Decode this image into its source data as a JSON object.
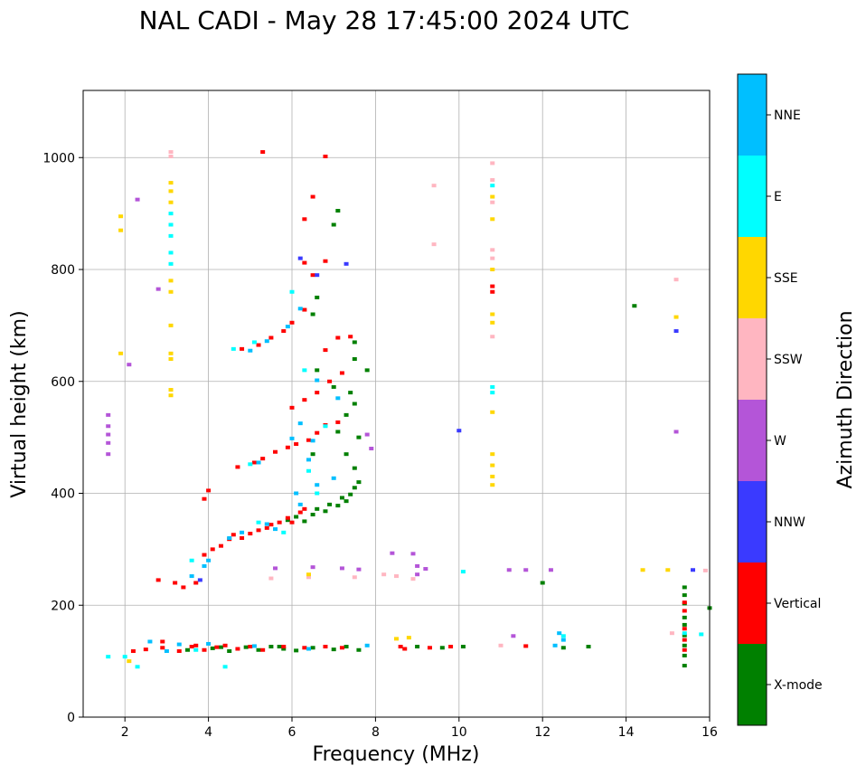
{
  "chart_data": {
    "type": "scatter",
    "title": "NAL CADI - May 28 17:45:00 2024 UTC",
    "xlabel": "Frequency (MHz)",
    "ylabel": "Virtual height (km)",
    "xlim": [
      1,
      16
    ],
    "ylim": [
      0,
      1120
    ],
    "xticks": [
      2,
      4,
      6,
      8,
      10,
      12,
      14,
      16
    ],
    "yticks": [
      0,
      200,
      400,
      600,
      800,
      1000
    ],
    "grid": true,
    "colorbar": {
      "label": "Azimuth Direction",
      "categories": [
        "X-mode",
        "Vertical",
        "NNW",
        "W",
        "SSW",
        "SSE",
        "E",
        "NNE"
      ],
      "colors": [
        "#008000",
        "#ff0000",
        "#3a3aff",
        "#b455d8",
        "#ffb6c1",
        "#ffd700",
        "#00ffff",
        "#00bfff"
      ]
    },
    "series": [
      {
        "name": "X-mode",
        "points": [
          [
            4.1,
            123
          ],
          [
            4.5,
            118
          ],
          [
            4.9,
            125
          ],
          [
            5.2,
            120
          ],
          [
            5.5,
            126
          ],
          [
            5.8,
            122
          ],
          [
            6.1,
            119
          ],
          [
            6.5,
            124
          ],
          [
            7.0,
            121
          ],
          [
            7.3,
            126
          ],
          [
            7.6,
            120
          ],
          [
            9.0,
            126
          ],
          [
            9.6,
            124
          ],
          [
            10.1,
            126
          ],
          [
            12.5,
            124
          ],
          [
            13.1,
            126
          ],
          [
            5.9,
            352
          ],
          [
            6.1,
            358
          ],
          [
            6.3,
            350
          ],
          [
            6.5,
            362
          ],
          [
            6.6,
            372
          ],
          [
            6.8,
            368
          ],
          [
            6.9,
            380
          ],
          [
            7.1,
            378
          ],
          [
            7.2,
            392
          ],
          [
            7.3,
            386
          ],
          [
            7.4,
            398
          ],
          [
            7.5,
            410
          ],
          [
            7.6,
            420
          ],
          [
            7.5,
            445
          ],
          [
            7.3,
            470
          ],
          [
            7.6,
            500
          ],
          [
            7.1,
            510
          ],
          [
            6.5,
            470
          ],
          [
            7.5,
            560
          ],
          [
            7.5,
            640
          ],
          [
            7.5,
            670
          ],
          [
            6.6,
            620
          ],
          [
            7.0,
            590
          ],
          [
            7.3,
            540
          ],
          [
            7.4,
            580
          ],
          [
            7.8,
            620
          ],
          [
            6.6,
            750
          ],
          [
            6.5,
            720
          ],
          [
            7.0,
            880
          ],
          [
            7.1,
            905
          ],
          [
            3.5,
            120
          ],
          [
            4.3,
            125
          ],
          [
            5.7,
            126
          ],
          [
            12.0,
            240
          ],
          [
            14.2,
            735
          ],
          [
            15.4,
            92
          ],
          [
            15.4,
            110
          ],
          [
            15.4,
            128
          ],
          [
            15.4,
            146
          ],
          [
            15.4,
            165
          ],
          [
            15.4,
            178
          ],
          [
            15.4,
            203
          ],
          [
            15.4,
            218
          ],
          [
            15.4,
            232
          ],
          [
            16.0,
            195
          ]
        ]
      },
      {
        "name": "Vertical",
        "points": [
          [
            2.2,
            118
          ],
          [
            2.5,
            121
          ],
          [
            2.9,
            124
          ],
          [
            3.3,
            118
          ],
          [
            3.6,
            126
          ],
          [
            3.9,
            120
          ],
          [
            4.2,
            125
          ],
          [
            4.4,
            128
          ],
          [
            4.7,
            122
          ],
          [
            5.0,
            126
          ],
          [
            5.3,
            120
          ],
          [
            5.8,
            126
          ],
          [
            6.3,
            124
          ],
          [
            6.8,
            126
          ],
          [
            7.2,
            124
          ],
          [
            8.6,
            126
          ],
          [
            8.7,
            122
          ],
          [
            9.3,
            124
          ],
          [
            9.8,
            126
          ],
          [
            11.6,
            127
          ],
          [
            3.9,
            290
          ],
          [
            4.1,
            300
          ],
          [
            4.3,
            306
          ],
          [
            4.5,
            318
          ],
          [
            4.6,
            326
          ],
          [
            4.8,
            320
          ],
          [
            5.0,
            328
          ],
          [
            5.2,
            334
          ],
          [
            5.4,
            338
          ],
          [
            5.5,
            344
          ],
          [
            5.7,
            348
          ],
          [
            5.9,
            356
          ],
          [
            6.0,
            348
          ],
          [
            6.2,
            366
          ],
          [
            6.3,
            372
          ],
          [
            3.7,
            240
          ],
          [
            3.4,
            232
          ],
          [
            3.2,
            240
          ],
          [
            3.9,
            390
          ],
          [
            4.0,
            405
          ],
          [
            4.7,
            447
          ],
          [
            5.1,
            455
          ],
          [
            5.3,
            462
          ],
          [
            5.6,
            474
          ],
          [
            5.9,
            482
          ],
          [
            6.1,
            488
          ],
          [
            6.4,
            495
          ],
          [
            6.6,
            508
          ],
          [
            6.8,
            522
          ],
          [
            7.1,
            527
          ],
          [
            6.0,
            553
          ],
          [
            6.3,
            567
          ],
          [
            6.6,
            580
          ],
          [
            6.9,
            600
          ],
          [
            7.2,
            615
          ],
          [
            7.1,
            678
          ],
          [
            6.8,
            656
          ],
          [
            4.8,
            658
          ],
          [
            5.2,
            665
          ],
          [
            5.5,
            678
          ],
          [
            5.8,
            690
          ],
          [
            6.0,
            705
          ],
          [
            6.3,
            728
          ],
          [
            6.5,
            790
          ],
          [
            6.8,
            815
          ],
          [
            6.3,
            812
          ],
          [
            5.3,
            1010
          ],
          [
            6.8,
            1002
          ],
          [
            6.5,
            930
          ],
          [
            6.3,
            890
          ],
          [
            2.8,
            245
          ],
          [
            10.8,
            770
          ],
          [
            10.8,
            760
          ],
          [
            15.4,
            120
          ],
          [
            15.4,
            138
          ],
          [
            15.4,
            158
          ],
          [
            15.4,
            190
          ],
          [
            15.4,
            205
          ],
          [
            7.4,
            680
          ],
          [
            2.9,
            135
          ],
          [
            3.7,
            128
          ]
        ]
      },
      {
        "name": "NNW",
        "points": [
          [
            15.2,
            690
          ],
          [
            3.8,
            245
          ],
          [
            6.2,
            820
          ],
          [
            6.6,
            790
          ],
          [
            7.3,
            810
          ],
          [
            10.0,
            512
          ],
          [
            15.6,
            263
          ]
        ]
      },
      {
        "name": "W",
        "points": [
          [
            1.6,
            540
          ],
          [
            1.6,
            520
          ],
          [
            1.6,
            505
          ],
          [
            1.6,
            490
          ],
          [
            1.6,
            470
          ],
          [
            7.8,
            505
          ],
          [
            7.9,
            480
          ],
          [
            8.4,
            293
          ],
          [
            8.9,
            292
          ],
          [
            9.0,
            270
          ],
          [
            9.0,
            255
          ],
          [
            9.2,
            265
          ],
          [
            11.2,
            263
          ],
          [
            11.6,
            263
          ],
          [
            12.2,
            263
          ],
          [
            15.2,
            510
          ],
          [
            7.6,
            264
          ],
          [
            7.2,
            266
          ],
          [
            6.5,
            268
          ],
          [
            5.6,
            266
          ],
          [
            2.8,
            765
          ],
          [
            2.1,
            630
          ],
          [
            11.3,
            145
          ],
          [
            2.3,
            925
          ]
        ]
      },
      {
        "name": "SSW",
        "points": [
          [
            3.1,
            1010
          ],
          [
            3.1,
            1002
          ],
          [
            10.8,
            990
          ],
          [
            10.8,
            960
          ],
          [
            10.8,
            920
          ],
          [
            10.8,
            835
          ],
          [
            10.8,
            820
          ],
          [
            10.8,
            680
          ],
          [
            9.4,
            950
          ],
          [
            9.4,
            845
          ],
          [
            15.2,
            782
          ],
          [
            8.5,
            252
          ],
          [
            8.2,
            255
          ],
          [
            7.5,
            250
          ],
          [
            6.4,
            250
          ],
          [
            5.5,
            248
          ],
          [
            15.9,
            262
          ],
          [
            15.1,
            150
          ],
          [
            11.0,
            128
          ],
          [
            8.9,
            247
          ]
        ]
      },
      {
        "name": "SSE",
        "points": [
          [
            3.1,
            955
          ],
          [
            3.1,
            940
          ],
          [
            3.1,
            920
          ],
          [
            3.1,
            780
          ],
          [
            3.1,
            760
          ],
          [
            3.1,
            650
          ],
          [
            3.1,
            640
          ],
          [
            3.1,
            585
          ],
          [
            3.1,
            575
          ],
          [
            10.8,
            930
          ],
          [
            10.8,
            800
          ],
          [
            10.8,
            720
          ],
          [
            10.8,
            705
          ],
          [
            10.8,
            545
          ],
          [
            10.8,
            470
          ],
          [
            10.8,
            450
          ],
          [
            10.8,
            430
          ],
          [
            10.8,
            415
          ],
          [
            15.2,
            715
          ],
          [
            15.0,
            263
          ],
          [
            14.4,
            263
          ],
          [
            1.9,
            895
          ],
          [
            1.9,
            870
          ],
          [
            1.9,
            650
          ],
          [
            8.5,
            140
          ],
          [
            8.8,
            142
          ],
          [
            2.1,
            100
          ],
          [
            3.1,
            700
          ],
          [
            6.4,
            255
          ],
          [
            10.8,
            890
          ]
        ]
      },
      {
        "name": "E",
        "points": [
          [
            3.1,
            900
          ],
          [
            3.1,
            880
          ],
          [
            3.1,
            860
          ],
          [
            3.1,
            830
          ],
          [
            3.1,
            810
          ],
          [
            10.8,
            950
          ],
          [
            10.8,
            590
          ],
          [
            10.8,
            580
          ],
          [
            10.1,
            260
          ],
          [
            15.8,
            148
          ],
          [
            15.4,
            150
          ],
          [
            12.5,
            145
          ],
          [
            3.7,
            120
          ],
          [
            4.4,
            90
          ],
          [
            2.3,
            90
          ],
          [
            4.6,
            658
          ],
          [
            5.1,
            670
          ],
          [
            3.6,
            280
          ],
          [
            5.0,
            452
          ],
          [
            6.4,
            440
          ],
          [
            6.6,
            400
          ],
          [
            5.8,
            330
          ],
          [
            5.2,
            348
          ],
          [
            6.8,
            520
          ],
          [
            6.3,
            620
          ],
          [
            6.0,
            760
          ],
          [
            1.6,
            108
          ],
          [
            2.0,
            108
          ]
        ]
      },
      {
        "name": "NNE",
        "points": [
          [
            4.5,
            320
          ],
          [
            4.8,
            330
          ],
          [
            5.6,
            336
          ],
          [
            4.0,
            280
          ],
          [
            3.9,
            270
          ],
          [
            3.6,
            252
          ],
          [
            5.4,
            345
          ],
          [
            6.2,
            380
          ],
          [
            6.1,
            400
          ],
          [
            6.6,
            415
          ],
          [
            7.0,
            427
          ],
          [
            6.4,
            460
          ],
          [
            6.0,
            498
          ],
          [
            6.2,
            525
          ],
          [
            5.2,
            455
          ],
          [
            5.0,
            655
          ],
          [
            5.4,
            672
          ],
          [
            5.9,
            698
          ],
          [
            6.2,
            730
          ],
          [
            6.6,
            602
          ],
          [
            7.1,
            570
          ],
          [
            12.4,
            150
          ],
          [
            12.5,
            138
          ],
          [
            2.6,
            135
          ],
          [
            3.3,
            130
          ],
          [
            3.0,
            118
          ],
          [
            4.0,
            131
          ],
          [
            5.1,
            127
          ],
          [
            6.4,
            122
          ],
          [
            7.8,
            128
          ],
          [
            12.3,
            128
          ],
          [
            6.5,
            494
          ]
        ]
      }
    ]
  }
}
